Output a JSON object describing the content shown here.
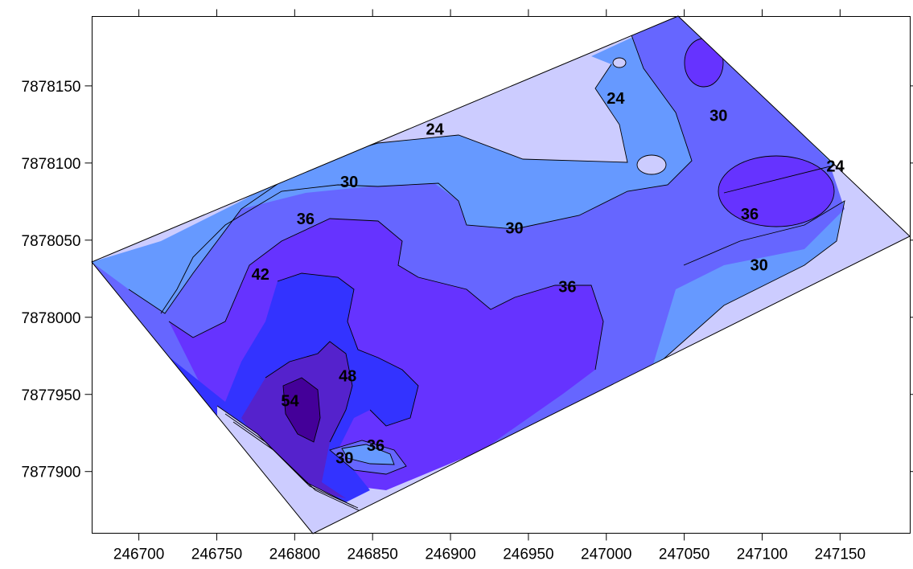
{
  "map": {
    "type": "contour",
    "x_axis": {
      "range": [
        246670,
        247195
      ],
      "ticks": [
        246700,
        246750,
        246800,
        246850,
        246900,
        246950,
        247000,
        247050,
        247100,
        247150
      ],
      "tick_labels": [
        "246700",
        "246750",
        "246800",
        "246850",
        "246900",
        "246950",
        "247000",
        "247050",
        "247100",
        "247150"
      ]
    },
    "y_axis": {
      "range": [
        7877860,
        7878195
      ],
      "ticks": [
        7877900,
        7877950,
        7878000,
        7878050,
        7878100,
        7878150
      ],
      "tick_labels": [
        "7877900",
        "7877950",
        "7878000",
        "7878050",
        "7878100",
        "7878150"
      ]
    },
    "contour_levels": [
      24,
      30,
      36,
      42,
      48,
      54
    ],
    "contour_labels": [
      {
        "text": "24",
        "x": 246890,
        "y": 7878122
      },
      {
        "text": "24",
        "x": 247006,
        "y": 7878142
      },
      {
        "text": "24",
        "x": 247147,
        "y": 7878098
      },
      {
        "text": "30",
        "x": 246835,
        "y": 7878088
      },
      {
        "text": "30",
        "x": 246941,
        "y": 7878058
      },
      {
        "text": "30",
        "x": 247072,
        "y": 7878131
      },
      {
        "text": "30",
        "x": 247098,
        "y": 7878034
      },
      {
        "text": "30",
        "x": 246832,
        "y": 7877909
      },
      {
        "text": "36",
        "x": 246807,
        "y": 7878064
      },
      {
        "text": "36",
        "x": 246975,
        "y": 7878020
      },
      {
        "text": "36",
        "x": 247092,
        "y": 7878067
      },
      {
        "text": "36",
        "x": 246852,
        "y": 7877917
      },
      {
        "text": "42",
        "x": 246778,
        "y": 7878028
      },
      {
        "text": "48",
        "x": 246834,
        "y": 7877962
      },
      {
        "text": "54",
        "x": 246797,
        "y": 7877946
      }
    ],
    "colors": {
      "level_lt24": "#ccccff",
      "level_24_30": "#6699ff",
      "level_30_36": "#6666ff",
      "level_36_42": "#6633ff",
      "level_42_48": "#3333ff",
      "level_48_54": "#5522cc",
      "level_gt54": "#440099",
      "contour_line": "#000000"
    }
  }
}
